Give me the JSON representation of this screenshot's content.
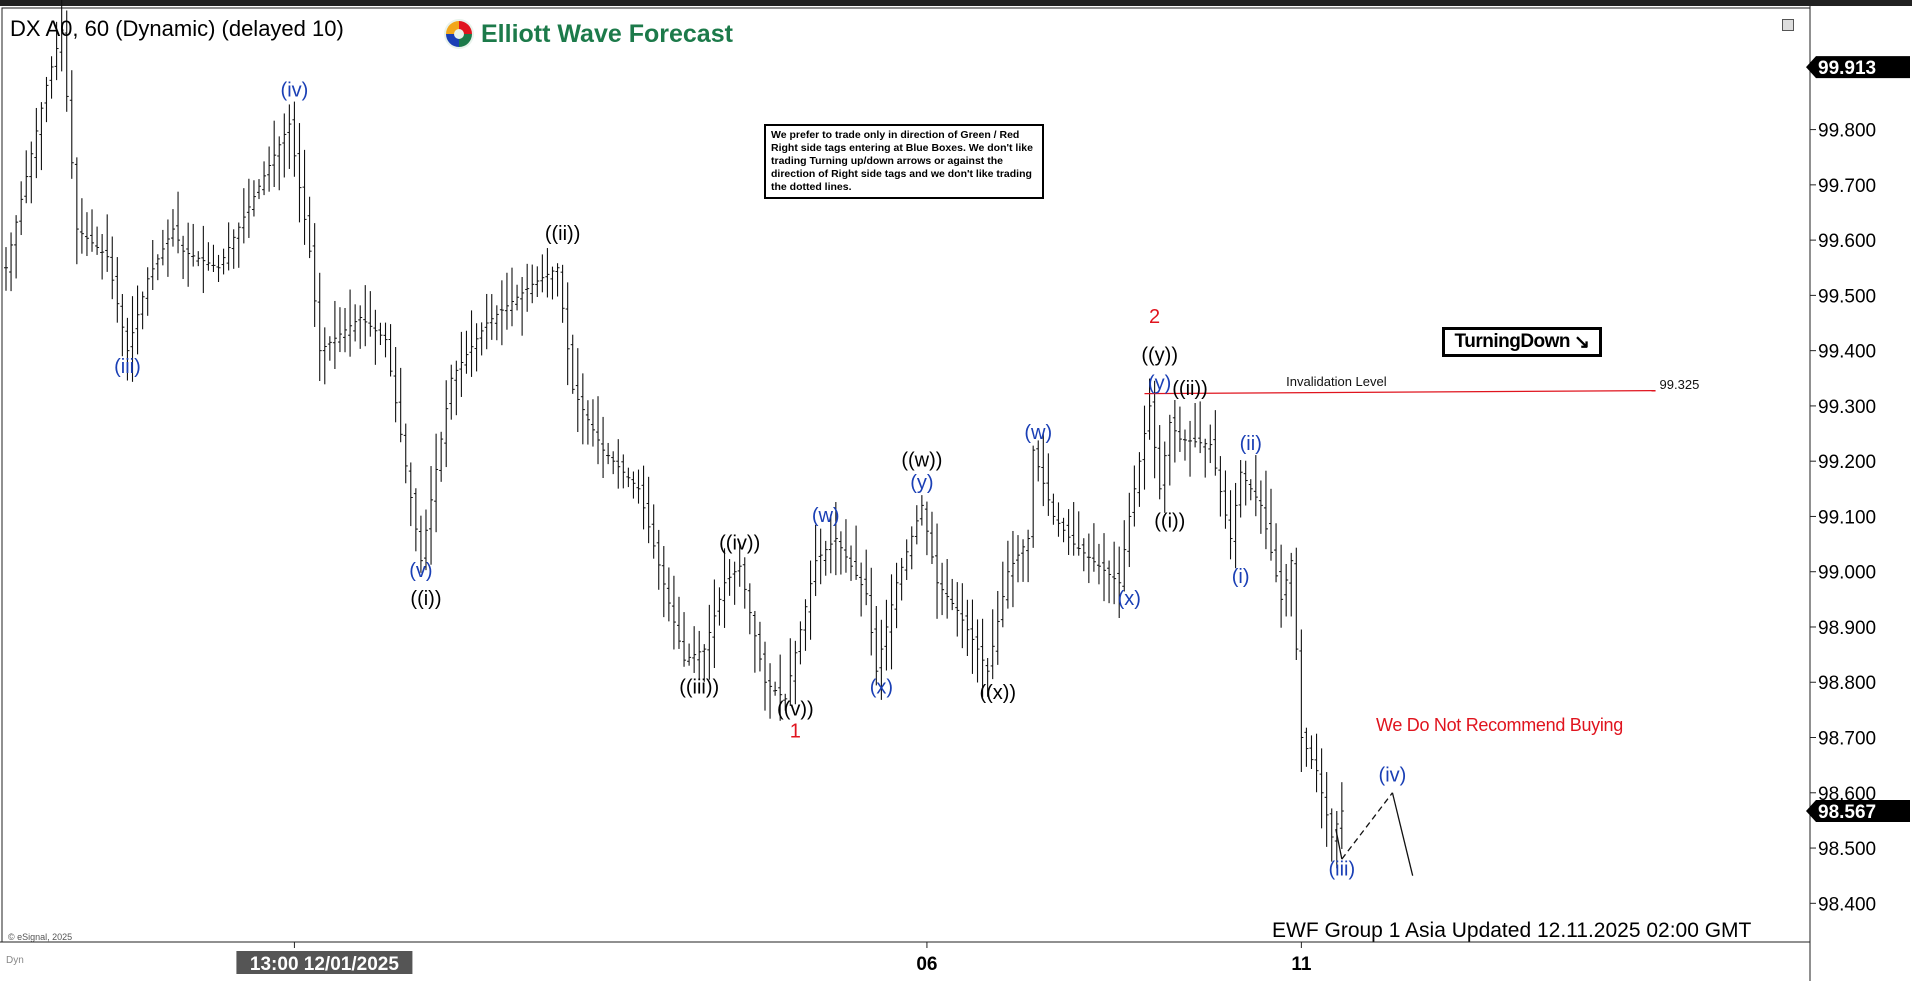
{
  "header": {
    "instrument": "DX A0, 60 (Dynamic) (delayed 10)",
    "brand": "Elliott Wave Forecast"
  },
  "note": "We prefer to trade only in direction of Green / Red Right side tags entering at Blue Boxes. We don't like trading Turning up/down arrows or against the direction of Right side tags and we don't like trading the dotted lines.",
  "turning_tag": {
    "label": "TurningDown",
    "arrow": "↘"
  },
  "recommendation": "We Do Not Recommend Buying",
  "footer": {
    "update": "EWF Group 1 Asia Updated 12.11.2025 02:00 GMT",
    "copyright": "© eSignal, 2025",
    "dyn": "Dyn"
  },
  "icons": {
    "window": "restore-window-icon",
    "logo": "ewf-logo-icon"
  },
  "colors": {
    "wave_blue": "#1a3fb5",
    "wave_black": "#000000",
    "wave_red": "#e0141e",
    "invalidation_line": "#e0141e",
    "brand_green": "#1c7a4a",
    "price_tag_bg": "#000000"
  },
  "chart_data": {
    "type": "bar",
    "title": "DX A0, 60 (Dynamic) (delayed 10)",
    "y_axis": {
      "ticks": [
        "99.800",
        "99.700",
        "99.600",
        "99.500",
        "99.400",
        "99.300",
        "99.200",
        "99.100",
        "99.000",
        "98.900",
        "98.800",
        "98.700",
        "98.600",
        "98.500",
        "98.400"
      ],
      "range": [
        98.33,
        100.02
      ],
      "side": "right"
    },
    "x_axis": {
      "labels": [
        {
          "text": "13:00 12/01/2025",
          "bar": 57,
          "highlight": true
        },
        {
          "text": "06",
          "bar": 182,
          "highlight": false
        },
        {
          "text": "11",
          "bar": 256,
          "highlight": false
        }
      ],
      "bar_count": 285
    },
    "price_tags": [
      {
        "label": "99.913",
        "value": 99.913
      },
      {
        "label": "98.567",
        "value": 98.567
      }
    ],
    "invalidation": {
      "label": "Invalidation Level",
      "value": 99.325,
      "value_label": "99.325",
      "from_bar": 225,
      "to_bar": 326
    },
    "anchors": [
      {
        "bar": 0,
        "price": 99.55
      },
      {
        "bar": 8,
        "price": 99.88
      },
      {
        "bar": 11,
        "price": 99.98
      },
      {
        "bar": 14,
        "price": 99.62
      },
      {
        "bar": 20,
        "price": 99.57
      },
      {
        "bar": 24,
        "price": 99.4
      },
      {
        "bar": 28,
        "price": 99.53
      },
      {
        "bar": 33,
        "price": 99.62
      },
      {
        "bar": 35,
        "price": 99.58
      },
      {
        "bar": 42,
        "price": 99.55
      },
      {
        "bar": 48,
        "price": 99.66
      },
      {
        "bar": 56,
        "price": 99.81
      },
      {
        "bar": 60,
        "price": 99.58
      },
      {
        "bar": 62,
        "price": 99.4
      },
      {
        "bar": 70,
        "price": 99.46
      },
      {
        "bar": 75,
        "price": 99.42
      },
      {
        "bar": 82,
        "price": 99.02
      },
      {
        "bar": 88,
        "price": 99.35
      },
      {
        "bar": 95,
        "price": 99.45
      },
      {
        "bar": 104,
        "price": 99.52
      },
      {
        "bar": 109,
        "price": 99.55
      },
      {
        "bar": 112,
        "price": 99.33
      },
      {
        "bar": 118,
        "price": 99.22
      },
      {
        "bar": 125,
        "price": 99.15
      },
      {
        "bar": 134,
        "price": 98.84
      },
      {
        "bar": 138,
        "price": 98.86
      },
      {
        "bar": 142,
        "price": 98.98
      },
      {
        "bar": 145,
        "price": 99.01
      },
      {
        "bar": 150,
        "price": 98.8
      },
      {
        "bar": 154,
        "price": 98.77
      },
      {
        "bar": 160,
        "price": 99.02
      },
      {
        "bar": 164,
        "price": 99.06
      },
      {
        "bar": 170,
        "price": 98.96
      },
      {
        "bar": 172,
        "price": 98.82
      },
      {
        "bar": 176,
        "price": 98.98
      },
      {
        "bar": 181,
        "price": 99.12
      },
      {
        "bar": 184,
        "price": 98.98
      },
      {
        "bar": 188,
        "price": 98.93
      },
      {
        "bar": 192,
        "price": 98.86
      },
      {
        "bar": 194,
        "price": 98.82
      },
      {
        "bar": 198,
        "price": 99.0
      },
      {
        "bar": 202,
        "price": 99.06
      },
      {
        "bar": 203,
        "price": 99.22
      },
      {
        "bar": 207,
        "price": 99.1
      },
      {
        "bar": 211,
        "price": 99.05
      },
      {
        "bar": 216,
        "price": 99.01
      },
      {
        "bar": 220,
        "price": 98.98
      },
      {
        "bar": 222,
        "price": 99.1
      },
      {
        "bar": 226,
        "price": 99.3
      },
      {
        "bar": 228,
        "price": 99.15
      },
      {
        "bar": 230,
        "price": 99.27
      },
      {
        "bar": 232,
        "price": 99.24
      },
      {
        "bar": 238,
        "price": 99.23
      },
      {
        "bar": 242,
        "price": 99.06
      },
      {
        "bar": 244,
        "price": 99.18
      },
      {
        "bar": 248,
        "price": 99.12
      },
      {
        "bar": 252,
        "price": 98.95
      },
      {
        "bar": 254,
        "price": 99.02
      },
      {
        "bar": 256,
        "price": 98.7
      },
      {
        "bar": 259,
        "price": 98.64
      },
      {
        "bar": 262,
        "price": 98.52
      },
      {
        "bar": 264,
        "price": 98.567
      }
    ],
    "projection": {
      "dashed": [
        {
          "bar": 264,
          "price": 98.48
        },
        {
          "bar": 274,
          "price": 98.6
        }
      ],
      "solid": [
        {
          "bar": 274,
          "price": 98.6
        },
        {
          "bar": 278,
          "price": 98.45
        }
      ]
    },
    "wave_labels": [
      {
        "text": "(iv)",
        "bar": 57,
        "price": 99.86,
        "color": "blue"
      },
      {
        "text": "(iii)",
        "bar": 24,
        "price": 99.36,
        "color": "blue"
      },
      {
        "text": "((ii))",
        "bar": 110,
        "price": 99.6,
        "color": "black"
      },
      {
        "text": "(v)",
        "bar": 82,
        "price": 98.99,
        "color": "blue"
      },
      {
        "text": "((i))",
        "bar": 83,
        "price": 98.94,
        "color": "black"
      },
      {
        "text": "((iii))",
        "bar": 137,
        "price": 98.78,
        "color": "black"
      },
      {
        "text": "((iv))",
        "bar": 145,
        "price": 99.04,
        "color": "black"
      },
      {
        "text": "((v))",
        "bar": 156,
        "price": 98.74,
        "color": "black"
      },
      {
        "text": "1",
        "bar": 156,
        "price": 98.7,
        "color": "red"
      },
      {
        "text": "(w)",
        "bar": 162,
        "price": 99.09,
        "color": "blue"
      },
      {
        "text": "(x)",
        "bar": 173,
        "price": 98.78,
        "color": "blue"
      },
      {
        "text": "((w))",
        "bar": 181,
        "price": 99.19,
        "color": "black"
      },
      {
        "text": "(y)",
        "bar": 181,
        "price": 99.15,
        "color": "blue"
      },
      {
        "text": "((x))",
        "bar": 196,
        "price": 98.77,
        "color": "black"
      },
      {
        "text": "(w)",
        "bar": 204,
        "price": 99.24,
        "color": "blue"
      },
      {
        "text": "(x)",
        "bar": 222,
        "price": 98.94,
        "color": "blue"
      },
      {
        "text": "2",
        "bar": 227,
        "price": 99.45,
        "color": "red"
      },
      {
        "text": "((y))",
        "bar": 228,
        "price": 99.38,
        "color": "black"
      },
      {
        "text": "(y)",
        "bar": 228,
        "price": 99.33,
        "color": "blue"
      },
      {
        "text": "((ii))",
        "bar": 234,
        "price": 99.32,
        "color": "black"
      },
      {
        "text": "((i))",
        "bar": 230,
        "price": 99.08,
        "color": "black"
      },
      {
        "text": "(ii)",
        "bar": 246,
        "price": 99.22,
        "color": "blue"
      },
      {
        "text": "(i)",
        "bar": 244,
        "price": 98.98,
        "color": "blue"
      },
      {
        "text": "(iv)",
        "bar": 274,
        "price": 98.62,
        "color": "blue"
      },
      {
        "text": "(iii)",
        "bar": 264,
        "price": 98.45,
        "color": "blue"
      }
    ]
  }
}
